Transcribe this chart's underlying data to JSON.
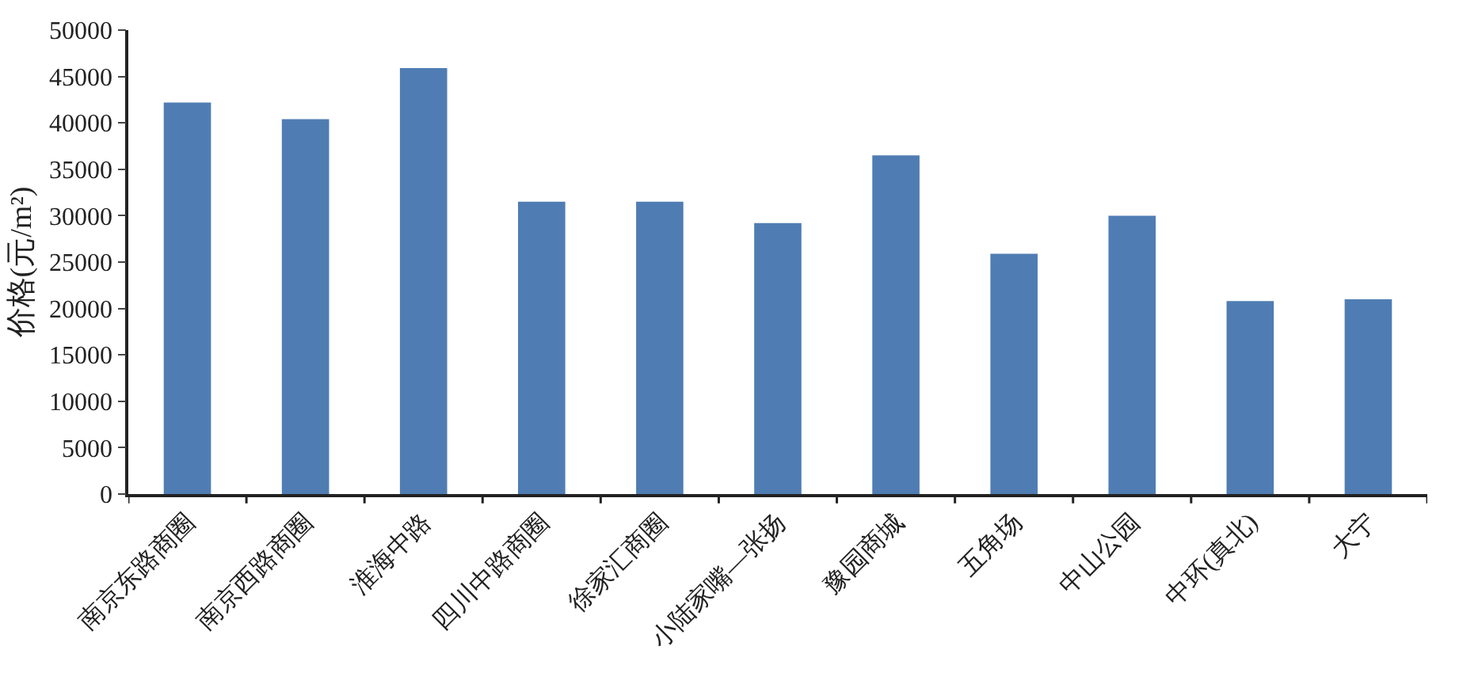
{
  "chart_data": {
    "type": "bar",
    "ylabel": "价格(元/m²)",
    "categories": [
      "南京东路商圈",
      "南京西路商圈",
      "淮海中路",
      "四川中路商圈",
      "徐家汇商圈",
      "小陆家嘴—张扬",
      "豫园商城",
      "五角场",
      "中山公园",
      "中环(真北)",
      "大宁"
    ],
    "values": [
      42200,
      40400,
      45900,
      31500,
      31500,
      29200,
      36500,
      25900,
      30000,
      20800,
      21000
    ],
    "color": "#4f7db3",
    "ylim": [
      0,
      50000
    ],
    "yticks": [
      0,
      5000,
      10000,
      15000,
      20000,
      25000,
      30000,
      35000,
      40000,
      45000,
      50000
    ],
    "grid": false
  }
}
